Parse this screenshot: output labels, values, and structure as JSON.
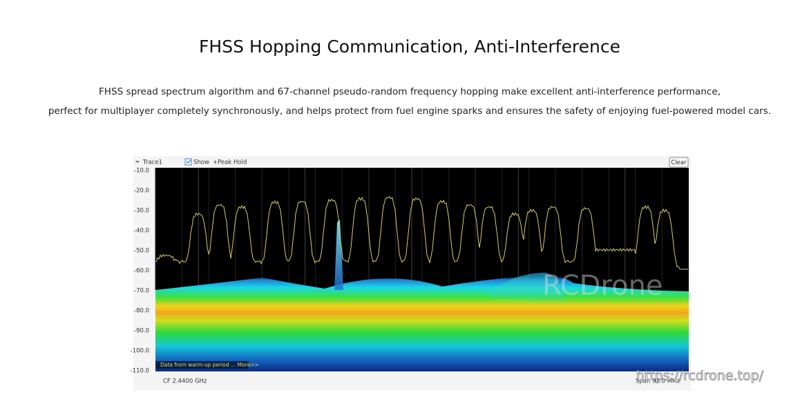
{
  "header": {
    "title": "FHSS Hopping Communication, Anti-Interference"
  },
  "description": {
    "lines": [
      "FHSS spread spectrum algorithm and 67-channel pseudo-random frequency hopping make excellent anti-interference performance,",
      "perfect for multiplayer completely synchronously, and helps protect from fuel engine sparks and ensures the safety of enjoying fuel-powered model cars."
    ]
  },
  "spectrum": {
    "trace": "Trace1",
    "show": "Show",
    "peak_hold": "+Peak Hold",
    "clear": "Clear",
    "y_labels": [
      "-10.0",
      "-20.0",
      "-30.0",
      "-40.0",
      "-50.0",
      "-60.0",
      "-70.0",
      "-80.0",
      "-90.0",
      "-100.0",
      "-110.0"
    ],
    "notice": "Data from warm-up period ... More>>",
    "center_freq": "CF  2.4400 GHz",
    "span": "Span 98.0 MHz",
    "watermark": "RCDrone"
  },
  "url": "https://rcdrone.top/"
}
